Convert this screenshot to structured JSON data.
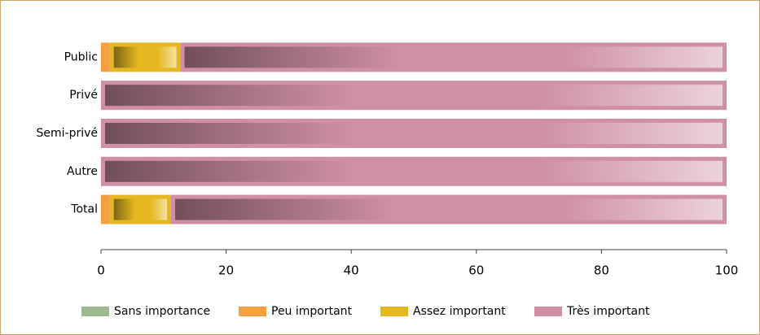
{
  "chart_data": {
    "type": "stacked_barh",
    "categories": [
      "Public",
      "Privé",
      "Semi-privé",
      "Autre",
      "Total"
    ],
    "series": [
      {
        "name": "Sans importance",
        "color": "#9fb98e",
        "values": [
          0,
          0,
          0,
          0,
          0
        ]
      },
      {
        "name": "Peu important",
        "color": "#f4a040",
        "values": [
          1.4,
          0,
          0,
          0,
          1.4
        ]
      },
      {
        "name": "Assez important",
        "color": "#e5b821",
        "values": [
          11.3,
          0,
          0,
          0,
          9.8
        ]
      },
      {
        "name": "Très important",
        "color": "#cf8fa6",
        "values": [
          87.3,
          100,
          100,
          100,
          88.8
        ]
      }
    ],
    "xlim": [
      0,
      100
    ],
    "xticks": [
      0,
      20,
      40,
      60,
      80,
      100
    ],
    "legend": "bottom"
  }
}
